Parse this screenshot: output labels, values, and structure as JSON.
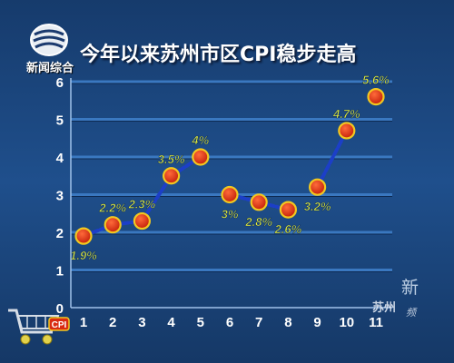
{
  "header": {
    "logo_text": "新闻综合",
    "title": "今年以来苏州市区CPI稳步走高"
  },
  "watermark": {
    "top": "新",
    "city": "苏州",
    "suffix": "频"
  },
  "badge": {
    "label": "CPI"
  },
  "colors": {
    "background": "#1d4a85",
    "gridline": "#3a78c0",
    "line": "#1c3fc8",
    "marker_fill": "#d92c12",
    "marker_ring": "#f2c81f",
    "label": "#e6f03c"
  },
  "chart_data": {
    "type": "line",
    "title": "今年以来苏州市区CPI稳步走高",
    "xlabel": "",
    "ylabel": "",
    "ylim": [
      0,
      6
    ],
    "yticks": [
      "0",
      "1",
      "2",
      "3",
      "4",
      "5",
      "6"
    ],
    "grid": true,
    "categories": [
      "1",
      "2",
      "3",
      "4",
      "5",
      "6",
      "7",
      "8",
      "9",
      "10",
      "11"
    ],
    "values": [
      1.9,
      2.2,
      2.3,
      3.5,
      4.0,
      3.0,
      2.8,
      2.6,
      3.2,
      4.7,
      5.6
    ],
    "data_labels": [
      "1.9%",
      "2.2%",
      "2.3%",
      "3.5%",
      "4%",
      "3%",
      "2.8%",
      "2.6%",
      "3.2%",
      "4.7%",
      "5.6%"
    ]
  }
}
